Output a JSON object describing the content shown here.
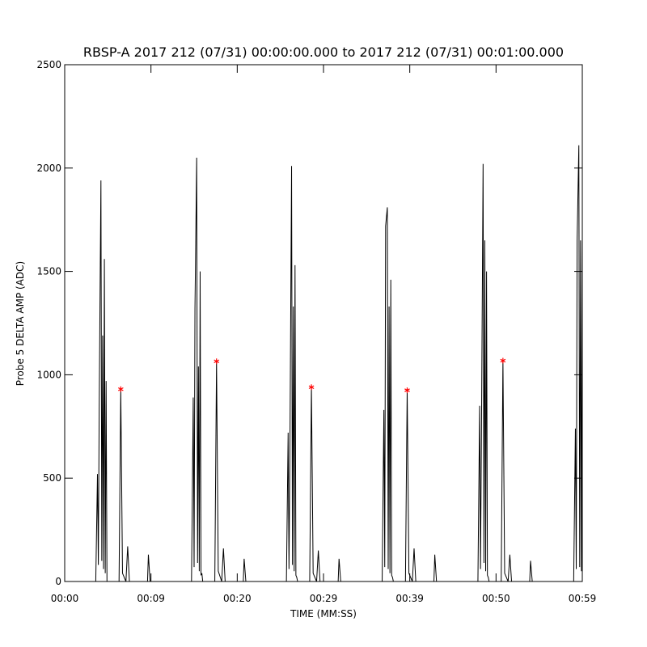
{
  "chart_data": {
    "type": "line",
    "title": "RBSP-A 2017 212 (07/31) 00:00:00.000 to 2017 212 (07/31) 00:01:00.000",
    "xlabel": "TIME (MM:SS)",
    "ylabel": "Probe 5 DELTA AMP (ADC)",
    "xlim": [
      0,
      60
    ],
    "ylim": [
      0,
      2500
    ],
    "xticks": [
      {
        "value": 0,
        "label": "00:00"
      },
      {
        "value": 10,
        "label": "00:09"
      },
      {
        "value": 20,
        "label": "00:20"
      },
      {
        "value": 30,
        "label": "00:29"
      },
      {
        "value": 40,
        "label": "00:39"
      },
      {
        "value": 50,
        "label": "00:50"
      },
      {
        "value": 60,
        "label": "00:59"
      }
    ],
    "yticks": [
      0,
      500,
      1000,
      1500,
      2000,
      2500
    ],
    "grid": false,
    "series": [
      {
        "color": "#000000",
        "x": [
          0,
          3.6,
          3.8,
          3.9,
          4.0,
          4.2,
          4.3,
          4.4,
          4.5,
          4.6,
          4.7,
          4.8,
          4.9,
          6.3,
          6.5,
          6.7,
          7.1,
          7.3,
          7.5,
          9.6,
          9.7,
          9.9,
          14.7,
          14.9,
          15.0,
          15.1,
          15.3,
          15.4,
          15.5,
          15.6,
          15.7,
          15.8,
          15.9,
          16.0,
          17.4,
          17.6,
          17.8,
          18.2,
          18.4,
          18.6,
          20.7,
          20.8,
          21.0,
          25.7,
          25.9,
          26.0,
          26.1,
          26.3,
          26.4,
          26.5,
          26.6,
          26.7,
          26.8,
          26.9,
          27.0,
          28.4,
          28.6,
          28.8,
          29.2,
          29.4,
          29.6,
          31.7,
          31.8,
          32.0,
          36.8,
          37.0,
          37.1,
          37.2,
          37.4,
          37.5,
          37.6,
          37.7,
          37.8,
          37.9,
          38.0,
          38.1,
          39.5,
          39.7,
          39.9,
          40.3,
          40.5,
          40.7,
          42.8,
          42.9,
          43.1,
          47.9,
          48.1,
          48.2,
          48.3,
          48.5,
          48.6,
          48.7,
          48.8,
          48.9,
          49.0,
          49.1,
          49.2,
          50.6,
          50.8,
          51.0,
          51.4,
          51.6,
          51.8,
          53.9,
          54.0,
          54.2,
          59.0,
          59.2,
          59.3,
          59.4,
          59.6,
          59.7,
          59.8,
          59.9,
          60.0
        ],
        "values": [
          0,
          0,
          520,
          80,
          850,
          1940,
          100,
          1190,
          60,
          1560,
          40,
          970,
          0,
          0,
          930,
          40,
          0,
          170,
          0,
          0,
          130,
          0,
          0,
          890,
          70,
          1320,
          2050,
          90,
          1040,
          50,
          1500,
          30,
          40,
          0,
          0,
          1065,
          50,
          0,
          160,
          0,
          0,
          110,
          0,
          0,
          720,
          60,
          580,
          2010,
          80,
          1330,
          50,
          1530,
          30,
          20,
          0,
          0,
          940,
          40,
          0,
          150,
          0,
          0,
          110,
          0,
          0,
          830,
          70,
          1720,
          1810,
          60,
          1330,
          40,
          1460,
          30,
          20,
          0,
          0,
          925,
          40,
          0,
          160,
          0,
          0,
          130,
          0,
          0,
          850,
          60,
          640,
          2020,
          90,
          1650,
          50,
          1500,
          30,
          20,
          0,
          0,
          1068,
          40,
          0,
          130,
          0,
          0,
          100,
          0,
          0,
          740,
          60,
          1650,
          2110,
          70,
          1650,
          50,
          1650
        ]
      },
      {
        "color": "#ff0000",
        "marker": "asterisk",
        "x": [
          6.5,
          17.6,
          28.6,
          39.7,
          50.8
        ],
        "values": [
          930,
          1065,
          940,
          925,
          1068
        ]
      }
    ]
  }
}
